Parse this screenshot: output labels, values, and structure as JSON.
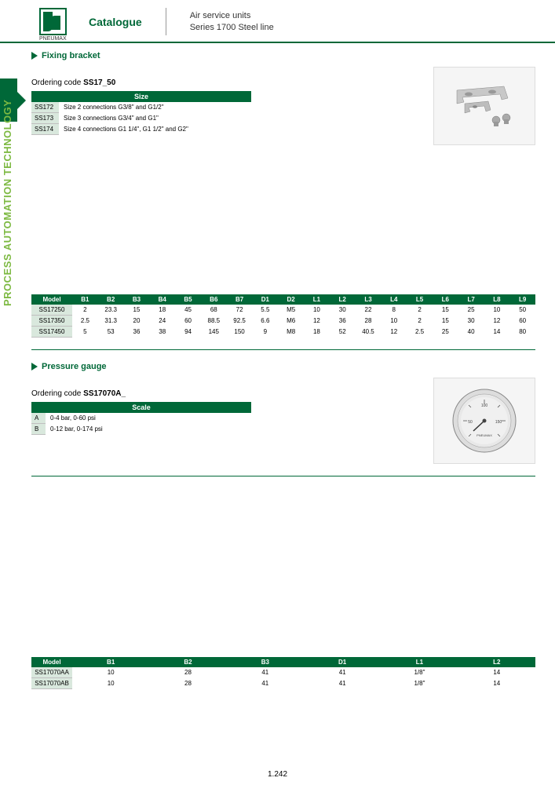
{
  "header": {
    "brand": "PNEUMAX",
    "catalogue": "Catalogue",
    "desc_line1": "Air service units",
    "desc_line2": "Series 1700 Steel line"
  },
  "side_text": "PROCESS AUTOMATION TECHNOLOGY",
  "section1": {
    "title": "Fixing bracket",
    "code_prefix": "Ordering code",
    "code_pattern": "SS17_50",
    "size_header": "Size",
    "sizes": [
      {
        "code": "SS172",
        "desc": "Size 2 connections G3/8\" and G1/2\""
      },
      {
        "code": "SS173",
        "desc": "Size 3 connections G3/4\" and G1\""
      },
      {
        "code": "SS174",
        "desc": "Size 4 connections G1 1/4\", G1 1/2\" and G2\""
      }
    ],
    "dims": {
      "headers": [
        "Model",
        "B1",
        "B2",
        "B3",
        "B4",
        "B5",
        "B6",
        "B7",
        "D1",
        "D2",
        "L1",
        "L2",
        "L3",
        "L4",
        "L5",
        "L6",
        "L7",
        "L8",
        "L9"
      ],
      "rows": [
        [
          "SS17250",
          "2",
          "23.3",
          "15",
          "18",
          "45",
          "68",
          "72",
          "5.5",
          "M5",
          "10",
          "30",
          "22",
          "8",
          "2",
          "15",
          "25",
          "10",
          "50"
        ],
        [
          "SS17350",
          "2.5",
          "31.3",
          "20",
          "24",
          "60",
          "88.5",
          "92.5",
          "6.6",
          "M6",
          "12",
          "36",
          "28",
          "10",
          "2",
          "15",
          "30",
          "12",
          "60"
        ],
        [
          "SS17450",
          "5",
          "53",
          "36",
          "38",
          "94",
          "145",
          "150",
          "9",
          "M8",
          "18",
          "52",
          "40.5",
          "12",
          "2.5",
          "25",
          "40",
          "14",
          "80"
        ]
      ]
    }
  },
  "section2": {
    "title": "Pressure gauge",
    "code_prefix": "Ordering code",
    "code_pattern": "SS17070A_",
    "scale_header": "Scale",
    "scales": [
      {
        "code": "A",
        "desc": "0-4 bar, 0-60 psi"
      },
      {
        "code": "B",
        "desc": "0-12 bar, 0-174 psi"
      }
    ],
    "dims": {
      "headers": [
        "Model",
        "B1",
        "B2",
        "B3",
        "D1",
        "L1",
        "L2"
      ],
      "rows": [
        [
          "SS17070AA",
          "10",
          "28",
          "41",
          "41",
          "1/8\"",
          "14"
        ],
        [
          "SS17070AB",
          "10",
          "28",
          "41",
          "41",
          "1/8\"",
          "14"
        ]
      ]
    }
  },
  "page_number": "1.242",
  "colors": {
    "green": "#006838",
    "lightgreen": "#d9e8dd",
    "sidegreen": "#7db942"
  }
}
